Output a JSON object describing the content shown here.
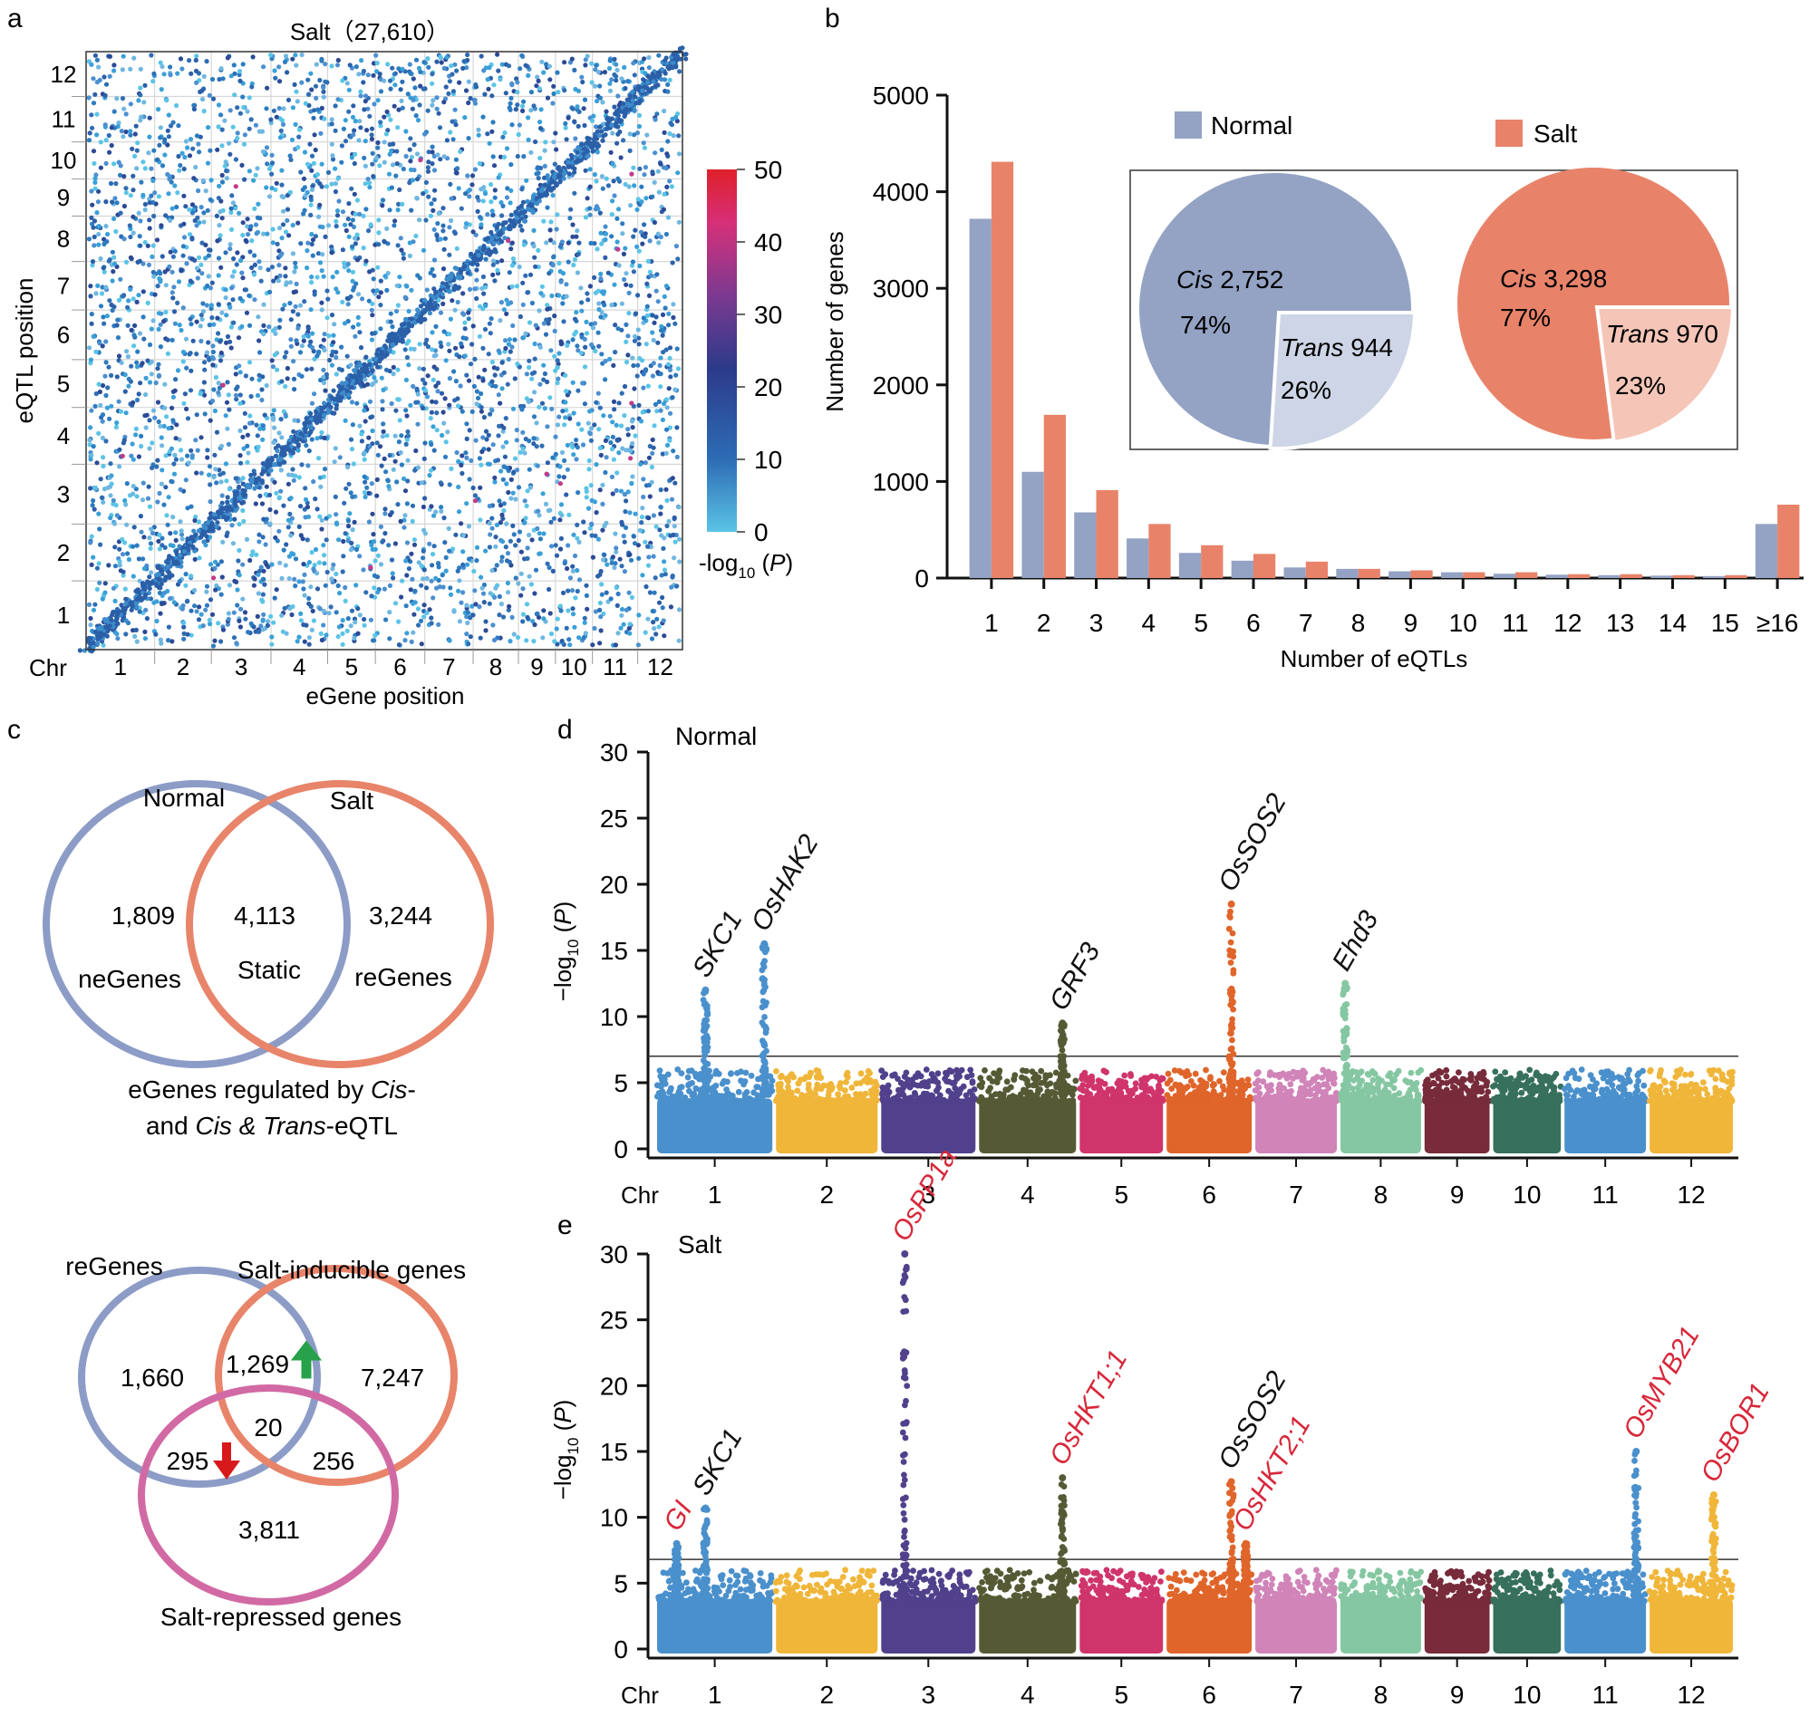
{
  "panel_letters": [
    "a",
    "b",
    "c",
    "d",
    "e"
  ],
  "colors": {
    "normal": "#94a3c4",
    "salt": "#e8836a",
    "trans_normal": "#cdd5e6",
    "trans_salt": "#f5c6b8",
    "venn_blue": "#8c9cc6",
    "venn_orange": "#e8846a",
    "venn_pink": "#d16aa4",
    "arrow_up": "#27a14a",
    "arrow_down": "#d7191c",
    "red_label": "#d7283a",
    "chr_colors": [
      "#4a90cc",
      "#f0b63a",
      "#51418c",
      "#555a35",
      "#cf356b",
      "#e0652a",
      "#d084b8",
      "#86c7a3",
      "#772b3b",
      "#37705c",
      "#4a90cc",
      "#f0b63a"
    ]
  },
  "chart_data": [
    {
      "panel": "a",
      "type": "scatter",
      "title": "Salt（27,610）",
      "xlabel": "eGene position",
      "ylabel": "eQTL position",
      "x_prefix": "Chr",
      "x_ticks": [
        "1",
        "2",
        "3",
        "4",
        "5",
        "6",
        "7",
        "8",
        "9",
        "10",
        "11",
        "12"
      ],
      "y_ticks": [
        "1",
        "2",
        "3",
        "4",
        "5",
        "6",
        "7",
        "8",
        "9",
        "10",
        "11",
        "12"
      ],
      "colorbar": {
        "label": "-log10 (P)",
        "ticks": [
          "0",
          "10",
          "20",
          "30",
          "40",
          "50"
        ],
        "range": [
          0,
          50
        ]
      },
      "grid": true
    },
    {
      "panel": "b",
      "type": "bar",
      "xlabel": "Number of eQTLs",
      "ylabel": "Number of genes",
      "ylim": [
        0,
        5000
      ],
      "y_ticks": [
        "0",
        "1000",
        "2000",
        "3000",
        "4000",
        "5000"
      ],
      "categories": [
        "1",
        "2",
        "3",
        "4",
        "5",
        "6",
        "7",
        "8",
        "9",
        "10",
        "11",
        "12",
        "13",
        "14",
        "15",
        "≥16"
      ],
      "series": [
        {
          "name": "Normal",
          "values": [
            3720,
            1100,
            680,
            410,
            260,
            180,
            110,
            95,
            70,
            60,
            45,
            35,
            30,
            25,
            20,
            560
          ]
        },
        {
          "name": "Salt",
          "values": [
            4310,
            1690,
            910,
            560,
            340,
            250,
            170,
            95,
            80,
            60,
            60,
            40,
            40,
            30,
            30,
            760
          ]
        }
      ],
      "inset_pies": [
        {
          "name": "Normal",
          "cis_label": "Cis",
          "cis_value": "2,752",
          "cis_pct": "74%",
          "trans_label": "Trans",
          "trans_value": "944",
          "trans_pct": "26%",
          "trans_fraction": 0.26
        },
        {
          "name": "Salt",
          "cis_label": "Cis",
          "cis_value": "3,298",
          "cis_pct": "77%",
          "trans_label": "Trans",
          "trans_value": "970",
          "trans_pct": "23%",
          "trans_fraction": 0.23
        }
      ]
    },
    {
      "panel": "d",
      "type": "scatter",
      "title": "Normal",
      "ylabel": "-log10 (P)",
      "x_prefix": "Chr",
      "ylim": [
        0,
        30
      ],
      "y_ticks": [
        "0",
        "5",
        "10",
        "15",
        "20",
        "25",
        "30"
      ],
      "x_ticks": [
        "1",
        "2",
        "3",
        "4",
        "5",
        "6",
        "7",
        "8",
        "9",
        "10",
        "11",
        "12"
      ],
      "threshold": 7,
      "peaks": [
        {
          "label": "SKC1",
          "chr": 1,
          "pos": 0.42,
          "value": 12,
          "color": "black"
        },
        {
          "label": "OsHAK2",
          "chr": 1,
          "pos": 0.93,
          "value": 15.5,
          "color": "black"
        },
        {
          "label": "GRF3",
          "chr": 4,
          "pos": 0.86,
          "value": 9.5,
          "color": "black"
        },
        {
          "label": "OsSOS2",
          "chr": 6,
          "pos": 0.76,
          "value": 18.5,
          "color": "black"
        },
        {
          "label": "Ehd3",
          "chr": 8,
          "pos": 0.06,
          "value": 12.5,
          "color": "black"
        }
      ]
    },
    {
      "panel": "e",
      "type": "scatter",
      "title": "Salt",
      "ylabel": "-log10 (P)",
      "x_prefix": "Chr",
      "ylim": [
        0,
        30
      ],
      "y_ticks": [
        "0",
        "5",
        "10",
        "15",
        "20",
        "25",
        "30"
      ],
      "x_ticks": [
        "1",
        "2",
        "3",
        "4",
        "5",
        "6",
        "7",
        "8",
        "9",
        "10",
        "11",
        "12"
      ],
      "threshold": 6.8,
      "peaks": [
        {
          "label": "GI",
          "chr": 1,
          "pos": 0.17,
          "value": 8,
          "color": "red"
        },
        {
          "label": "SKC1",
          "chr": 1,
          "pos": 0.42,
          "value": 10.7,
          "color": "black"
        },
        {
          "label": "OsPP1a",
          "chr": 3,
          "pos": 0.25,
          "value": 30,
          "color": "red"
        },
        {
          "label": "OsHKT1;1",
          "chr": 4,
          "pos": 0.86,
          "value": 13,
          "color": "red"
        },
        {
          "label": "OsSOS2",
          "chr": 6,
          "pos": 0.76,
          "value": 12.7,
          "color": "black"
        },
        {
          "label": "OsHKT2;1",
          "chr": 6,
          "pos": 0.93,
          "value": 8,
          "color": "red"
        },
        {
          "label": "OsMYB21",
          "chr": 11,
          "pos": 0.88,
          "value": 15,
          "color": "red"
        },
        {
          "label": "OsBOR1",
          "chr": 12,
          "pos": 0.77,
          "value": 11.7,
          "color": "red"
        }
      ]
    }
  ],
  "venn1": {
    "left_title": "Normal",
    "right_title": "Salt",
    "left_value": "1,809",
    "left_label": "neGenes",
    "center_value": "4,113",
    "center_label": "Static",
    "right_value": "3,244",
    "right_label": "reGenes",
    "caption_1a": "eGenes regulated by ",
    "caption_1b": "Cis",
    "caption_1c": "-",
    "caption_2a": "and ",
    "caption_2b": "Cis & Trans",
    "caption_2c": "-eQTL"
  },
  "venn2": {
    "a_title": "reGenes",
    "b_title": "Salt-inducible genes",
    "c_title": "Salt-repressed genes",
    "a_only": "1,660",
    "ab": "1,269",
    "b_only": "7,247",
    "abc": "20",
    "ac": "295",
    "bc": "256",
    "c_only": "3,811"
  }
}
